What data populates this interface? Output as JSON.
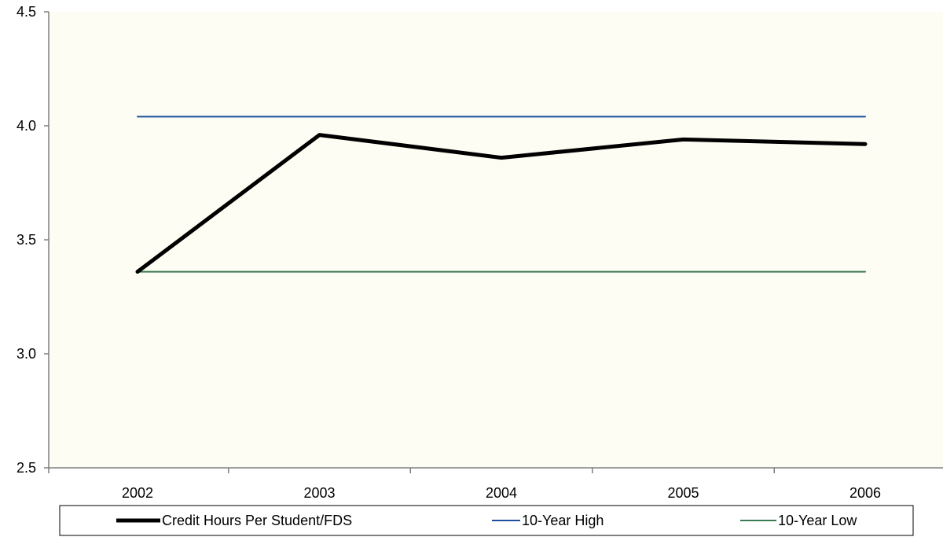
{
  "chart_data": {
    "type": "line",
    "title": "",
    "xlabel": "",
    "ylabel": "",
    "categories": [
      "2002",
      "2003",
      "2004",
      "2005",
      "2006"
    ],
    "ylim": [
      2.5,
      4.5
    ],
    "yticks": [
      "2.5",
      "3.0",
      "3.5",
      "4.0",
      "4.5"
    ],
    "grid": false,
    "legend": "bottom",
    "plot_background": "#fdfdf3",
    "series": [
      {
        "name": "Credit Hours Per Student/FDS",
        "values": [
          3.36,
          3.96,
          3.86,
          3.94,
          3.92
        ],
        "color": "#000000",
        "style": "thick"
      },
      {
        "name": "10-Year High",
        "values": [
          4.04,
          4.04,
          4.04,
          4.04,
          4.04
        ],
        "color": "#1f4e9c",
        "style": "thin"
      },
      {
        "name": "10-Year Low",
        "values": [
          3.36,
          3.36,
          3.36,
          3.36,
          3.36
        ],
        "color": "#3a7a52",
        "style": "thin"
      }
    ]
  }
}
